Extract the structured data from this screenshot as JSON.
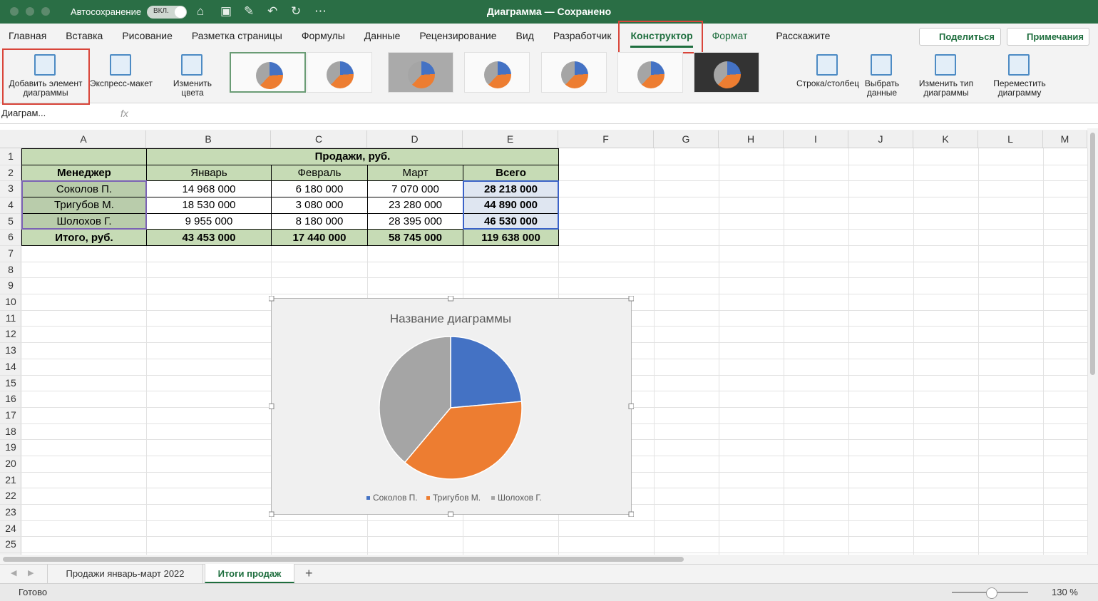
{
  "titlebar": {
    "autosave": "Автосохранение",
    "toggle": "ВКЛ.",
    "title": "Диаграмма — Сохранено"
  },
  "tabs": [
    "Главная",
    "Вставка",
    "Рисование",
    "Разметка страницы",
    "Формулы",
    "Данные",
    "Рецензирование",
    "Вид",
    "Разработчик",
    "Конструктор",
    "Формат",
    "Расскажите"
  ],
  "active_tab": 9,
  "share": "Поделиться",
  "comments": "Примечания",
  "ribbon": [
    "Добавить элемент диаграммы",
    "Экспресс-макет",
    "Изменить цвета",
    "Строка/столбец",
    "Выбрать данные",
    "Изменить тип диаграммы",
    "Переместить диаграмму"
  ],
  "name_box": "Диаграм...",
  "fx": "fx",
  "columns": [
    "A",
    "B",
    "C",
    "D",
    "E",
    "F",
    "G",
    "H",
    "I",
    "J",
    "K",
    "L",
    "M"
  ],
  "rows": [
    1,
    2,
    3,
    4,
    5,
    6,
    7,
    8,
    9,
    10,
    11,
    12,
    13,
    14,
    15,
    16,
    17,
    18,
    19,
    20,
    21,
    22,
    23,
    24,
    25
  ],
  "table": {
    "title": "Продажи, руб.",
    "rows": [
      [
        "Менеджер",
        "Январь",
        "Февраль",
        "Март",
        "Всего"
      ],
      [
        "Соколов П.",
        "14 968 000",
        "6 180 000",
        "7 070 000",
        "28 218 000"
      ],
      [
        "Тригубов М.",
        "18 530 000",
        "3 080 000",
        "23 280 000",
        "44 890 000"
      ],
      [
        "Шолохов Г.",
        "9 955 000",
        "8 180 000",
        "28 395 000",
        "46 530 000"
      ],
      [
        "Итого, руб.",
        "43 453 000",
        "17 440 000",
        "58 745 000",
        "119 638 000"
      ]
    ]
  },
  "chart_data": {
    "type": "pie",
    "title": "Название диаграммы",
    "categories": [
      "Соколов П.",
      "Тригубов М.",
      "Шолохов Г."
    ],
    "values": [
      28218000,
      44890000,
      46530000
    ],
    "colors": [
      "#4472c4",
      "#ed7d31",
      "#a5a5a5"
    ]
  },
  "sheets": [
    "Продажи январь-март 2022",
    "Итоги продаж"
  ],
  "active_sheet": 1,
  "status": "Готово",
  "zoom": "130 %"
}
